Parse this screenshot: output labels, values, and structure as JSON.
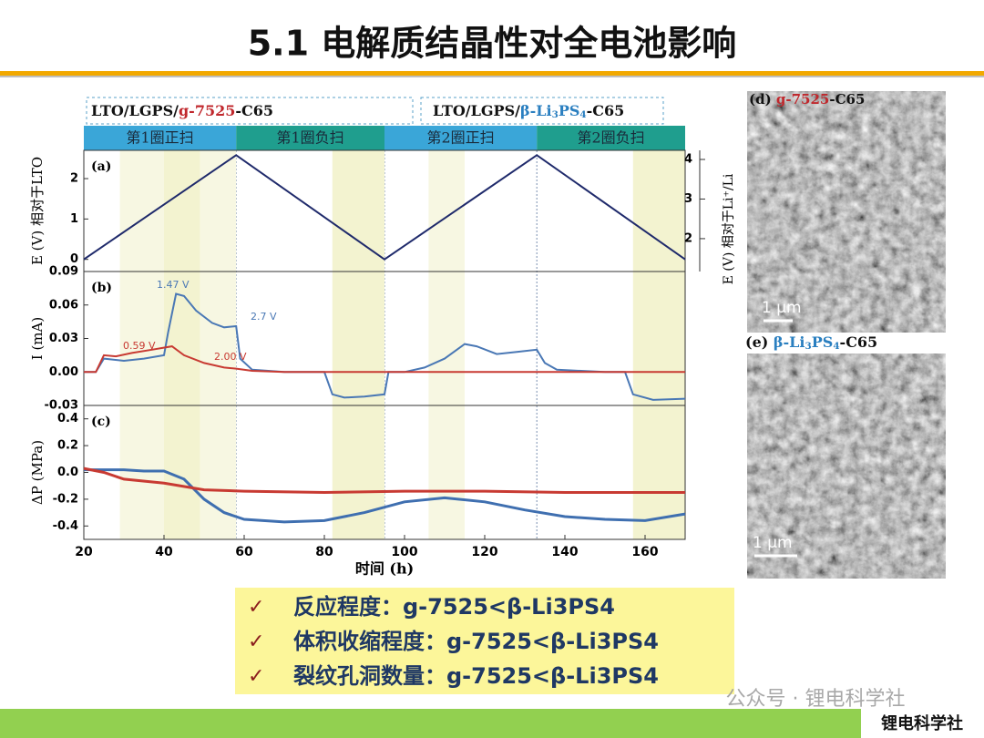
{
  "slide": {
    "title": "5.1 电解质结晶性对全电池影响",
    "bullets": [
      "反应程度：g-7525<β-Li3PS4",
      "体积收缩程度：g-7525<β-Li3PS4",
      "裂纹孔洞数量：g-7525<β-Li3PS4"
    ],
    "check": "✓",
    "watermark": "公众号 · 锂电科学社",
    "footer": "锂电科学社"
  },
  "figure": {
    "headers": [
      [
        {
          "text": "LTO/LGPS/"
        },
        {
          "text": "g-7525",
          "color": "#c0282d"
        },
        {
          "text": "-C65"
        }
      ],
      [
        {
          "text": "LTO/LGPS/"
        },
        {
          "text": "β-Li",
          "color": "#2a7fc0"
        },
        {
          "text": "3",
          "color": "#2a7fc0",
          "sub": true
        },
        {
          "text": "PS",
          "color": "#2a7fc0"
        },
        {
          "text": "4",
          "color": "#2a7fc0",
          "sub": true
        },
        {
          "text": "-C65"
        }
      ]
    ],
    "phases": [
      {
        "label": "第1圈正扫",
        "start": 20,
        "end": 58
      },
      {
        "label": "第1圈负扫",
        "start": 58,
        "end": 95
      },
      {
        "label": "第2圈正扫",
        "start": 95,
        "end": 133
      },
      {
        "label": "第2圈负扫",
        "start": 133,
        "end": 170
      }
    ],
    "images": [
      {
        "label": [
          {
            "text": "(d) "
          },
          {
            "text": "g-7525",
            "color": "#c0282d"
          },
          {
            "text": "-C65"
          }
        ],
        "scale": "1 μm"
      },
      {
        "label": [
          {
            "text": "(e) "
          },
          {
            "text": "β-Li",
            "color": "#2a7fc0"
          },
          {
            "text": "3",
            "color": "#2a7fc0",
            "sub": true
          },
          {
            "text": "PS",
            "color": "#2a7fc0"
          },
          {
            "text": "4",
            "color": "#2a7fc0",
            "sub": true
          },
          {
            "text": "-C65"
          }
        ],
        "scale": "1 μm"
      }
    ]
  },
  "chart_data": [
    {
      "type": "line",
      "panel": "(a)",
      "ylabel": "E (V) 相对于LTO",
      "y2label": "E (V) 相对于Li⁺/Li",
      "xlim": [
        20,
        170
      ],
      "ylim": [
        -0.3,
        2.7
      ],
      "yticks": [
        0,
        1,
        2
      ],
      "y2lim": [
        1.17,
        4.23
      ],
      "y2ticks": [
        2,
        3,
        4
      ],
      "series": [
        {
          "name": "LTO",
          "color": "#1f2a6b",
          "x": [
            20,
            58,
            95,
            133,
            170
          ],
          "values": [
            0,
            2.58,
            0,
            2.58,
            0
          ]
        }
      ]
    },
    {
      "type": "line",
      "panel": "(b)",
      "ylabel": "I (mA)",
      "xlim": [
        20,
        170
      ],
      "ylim": [
        -0.03,
        0.09
      ],
      "yticks": [
        -0.03,
        {
          "value": 0,
          "label": "0.00"
        },
        0.03,
        0.06,
        0.09
      ],
      "annotations": [
        "1.47 V",
        "2.7 V",
        "0.59 V",
        "2.00 V"
      ],
      "series": [
        {
          "name": "β-Li3PS4",
          "color": "#4a78b5",
          "x": [
            20,
            23,
            25,
            30,
            35,
            40,
            41,
            43,
            45,
            48,
            52,
            55,
            58,
            59,
            62,
            70,
            80,
            82,
            85,
            90,
            95,
            96,
            100,
            105,
            110,
            115,
            118,
            123,
            128,
            133,
            135,
            138,
            150,
            155,
            157,
            162,
            170
          ],
          "values": [
            0,
            0,
            0.012,
            0.01,
            0.012,
            0.015,
            0.035,
            0.07,
            0.068,
            0.055,
            0.044,
            0.04,
            0.041,
            0.012,
            0.002,
            0,
            0,
            -0.02,
            -0.023,
            -0.022,
            -0.02,
            0,
            0,
            0.004,
            0.012,
            0.025,
            0.023,
            0.016,
            0.018,
            0.02,
            0.008,
            0.002,
            0,
            0,
            -0.02,
            -0.025,
            -0.024
          ]
        },
        {
          "name": "g-7525",
          "color": "#c83a32",
          "x": [
            20,
            23,
            25,
            28,
            32,
            37,
            42,
            45,
            50,
            55,
            58,
            62,
            70,
            170
          ],
          "values": [
            0,
            0,
            0.015,
            0.014,
            0.017,
            0.02,
            0.023,
            0.015,
            0.008,
            0.004,
            0.003,
            0.001,
            0,
            0
          ]
        }
      ]
    },
    {
      "type": "line",
      "panel": "(c)",
      "ylabel": "ΔP (MPa)",
      "xlabel": "时间 (h)",
      "xlim": [
        20,
        170
      ],
      "ylim": [
        -0.5,
        0.5
      ],
      "xticks": [
        20,
        40,
        60,
        80,
        100,
        120,
        140,
        160
      ],
      "yticks": [
        -0.4,
        -0.2,
        {
          "value": 0,
          "label": "0.0"
        },
        0.2,
        0.4
      ],
      "series": [
        {
          "name": "β-Li3PS4",
          "color": "#3f6fb0",
          "x": [
            20,
            30,
            35,
            40,
            45,
            50,
            55,
            60,
            70,
            80,
            90,
            100,
            110,
            120,
            130,
            140,
            150,
            160,
            170
          ],
          "values": [
            0.02,
            0.02,
            0.01,
            0.01,
            -0.05,
            -0.2,
            -0.3,
            -0.35,
            -0.37,
            -0.36,
            -0.3,
            -0.22,
            -0.19,
            -0.22,
            -0.28,
            -0.33,
            -0.35,
            -0.36,
            -0.31
          ]
        },
        {
          "name": "g-7525",
          "color": "#c83a32",
          "x": [
            20,
            25,
            30,
            40,
            50,
            60,
            80,
            100,
            120,
            140,
            170
          ],
          "values": [
            0.03,
            0,
            -0.05,
            -0.08,
            -0.13,
            -0.14,
            -0.15,
            -0.14,
            -0.14,
            -0.15,
            -0.15
          ]
        }
      ]
    }
  ]
}
